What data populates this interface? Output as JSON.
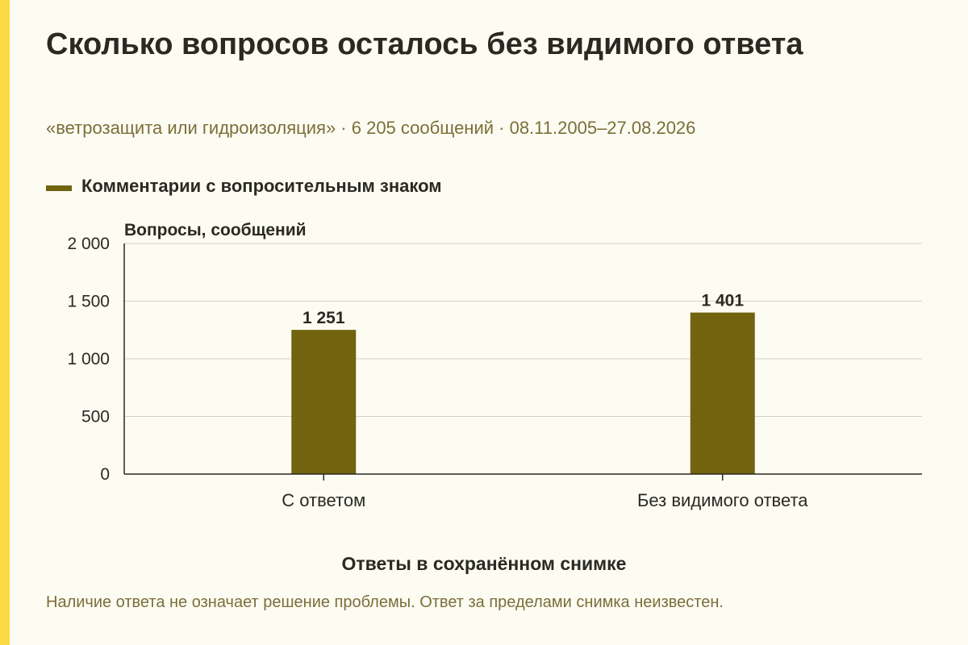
{
  "title": "Сколько вопросов осталось без видимого ответа",
  "subtitle": "«ветрозащита или гидроизоляция» · 6 205 сообщений · 08.11.2005–27.08.2026",
  "note": "Наличие ответа не означает решение проблемы. Ответ за пределами снимка неизвестен.",
  "colors": {
    "accent": "#fdd944",
    "bar": "#72630f",
    "grid": "#d4d2c6",
    "axis": "#2a2a22"
  },
  "chart_data": {
    "type": "bar",
    "categories": [
      "С ответом",
      "Без видимого ответа"
    ],
    "series": [
      {
        "name": "Комментарии с вопросительным знаком",
        "values": [
          1251,
          1401
        ],
        "value_labels": [
          "1 251",
          "1 401"
        ]
      }
    ],
    "xlabel": "Ответы в сохранённом снимке",
    "ylabel": "Вопросы, сообщений",
    "ylim": [
      0,
      2000
    ],
    "yticks": [
      0,
      500,
      1000,
      1500,
      2000
    ],
    "ytick_labels": [
      "0",
      "500",
      "1 000",
      "1 500",
      "2 000"
    ],
    "grid": true,
    "legend_position": "top-left"
  }
}
